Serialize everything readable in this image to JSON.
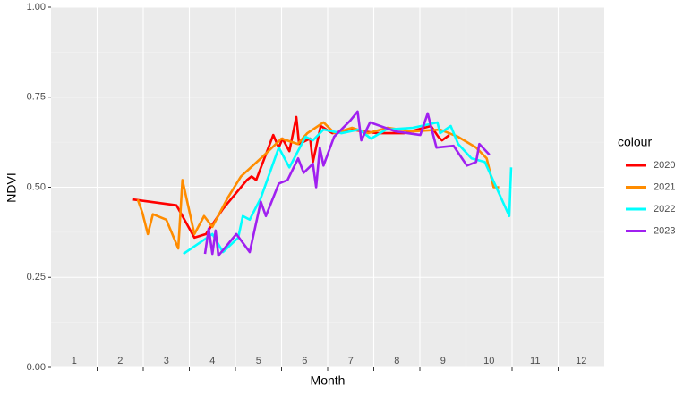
{
  "chart_data": {
    "type": "line",
    "xlabel": "Month",
    "ylabel": "NDVI",
    "legend_title": "colour",
    "legend": "right",
    "xlim": [
      0.5,
      12.5
    ],
    "ylim": [
      0,
      1
    ],
    "xticks": [
      1,
      2,
      3,
      4,
      5,
      6,
      7,
      8,
      9,
      10,
      11,
      12
    ],
    "xgrid": [
      1.5,
      2.5,
      3.5,
      4.5,
      5.5,
      6.5,
      7.5,
      8.5,
      9.5,
      10.5,
      11.5
    ],
    "yticks": [
      {
        "value": 0,
        "label": "0.00"
      },
      {
        "value": 0.25,
        "label": "0.25"
      },
      {
        "value": 0.5,
        "label": "0.50"
      },
      {
        "value": 0.75,
        "label": "0.75"
      },
      {
        "value": 1,
        "label": "1.00"
      }
    ],
    "yminor": [
      0.125,
      0.375,
      0.625,
      0.875
    ],
    "grid": true,
    "series": [
      {
        "name": "2020",
        "color": "#ff0000",
        "x": [
          2.28,
          3.22,
          3.61,
          3.86,
          4.23,
          4.75,
          4.85,
          4.95,
          5.32,
          5.44,
          5.52,
          5.67,
          5.82,
          5.88,
          6.12,
          6.18,
          6.35,
          6.6,
          6.99,
          7.57,
          8.16,
          8.74,
          8.9,
          8.98,
          9.14
        ],
        "values": [
          0.466,
          0.45,
          0.36,
          0.37,
          0.44,
          0.52,
          0.53,
          0.52,
          0.645,
          0.61,
          0.635,
          0.6,
          0.695,
          0.62,
          0.635,
          0.57,
          0.67,
          0.65,
          0.66,
          0.65,
          0.65,
          0.67,
          0.64,
          0.63,
          0.645
        ]
      },
      {
        "name": "2021",
        "color": "#ff8c00",
        "x": [
          2.38,
          2.48,
          2.6,
          2.71,
          3.0,
          3.26,
          3.35,
          3.61,
          3.82,
          4.0,
          4.33,
          4.62,
          5.05,
          5.5,
          5.85,
          6.06,
          6.41,
          6.65,
          7.03,
          7.38,
          7.8,
          8.35,
          8.94,
          9.33,
          9.72,
          9.95,
          10.1,
          10.22
        ],
        "values": [
          0.466,
          0.43,
          0.37,
          0.425,
          0.41,
          0.33,
          0.52,
          0.37,
          0.42,
          0.39,
          0.47,
          0.53,
          0.58,
          0.635,
          0.62,
          0.65,
          0.68,
          0.65,
          0.665,
          0.65,
          0.665,
          0.655,
          0.66,
          0.64,
          0.61,
          0.58,
          0.5,
          0.5
        ]
      },
      {
        "name": "2022",
        "color": "#00ffff",
        "x": [
          3.37,
          4.0,
          4.23,
          4.56,
          4.66,
          4.81,
          5.05,
          5.44,
          5.67,
          6.02,
          6.18,
          6.41,
          6.8,
          7.18,
          7.44,
          7.77,
          8.35,
          8.88,
          8.94,
          9.17,
          9.33,
          9.62,
          9.91,
          10.44,
          10.48
        ],
        "values": [
          0.315,
          0.37,
          0.32,
          0.36,
          0.42,
          0.41,
          0.47,
          0.61,
          0.555,
          0.64,
          0.63,
          0.66,
          0.65,
          0.66,
          0.635,
          0.66,
          0.665,
          0.68,
          0.65,
          0.67,
          0.62,
          0.58,
          0.57,
          0.42,
          0.555
        ]
      },
      {
        "name": "2023",
        "color": "#a020f0",
        "x": [
          3.84,
          3.92,
          4.0,
          4.07,
          4.13,
          4.52,
          4.81,
          5.05,
          5.16,
          5.44,
          5.63,
          5.86,
          5.98,
          6.18,
          6.25,
          6.33,
          6.41,
          6.64,
          6.99,
          7.15,
          7.23,
          7.42,
          7.97,
          8.51,
          8.67,
          8.86,
          9.23,
          9.52,
          9.72,
          9.79,
          10.01
        ],
        "values": [
          0.315,
          0.385,
          0.315,
          0.38,
          0.31,
          0.37,
          0.32,
          0.46,
          0.42,
          0.51,
          0.52,
          0.58,
          0.54,
          0.565,
          0.5,
          0.61,
          0.56,
          0.64,
          0.685,
          0.71,
          0.63,
          0.68,
          0.655,
          0.645,
          0.705,
          0.61,
          0.615,
          0.56,
          0.57,
          0.62,
          0.59
        ]
      }
    ]
  }
}
